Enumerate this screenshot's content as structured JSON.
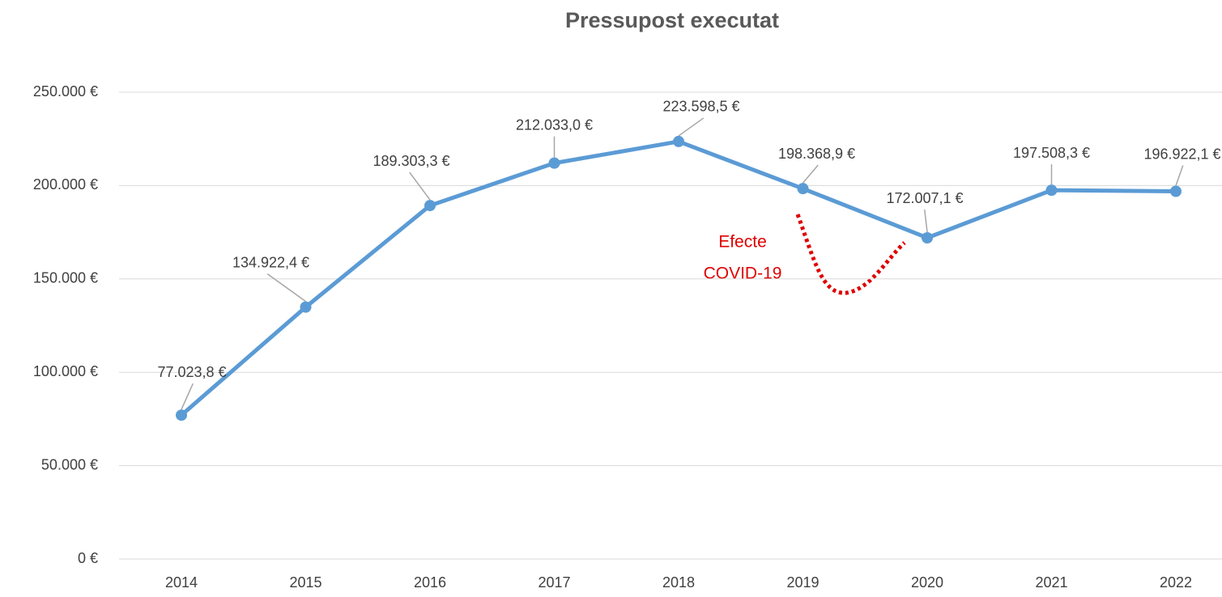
{
  "chart_data": {
    "type": "line",
    "title": "Pressupost executat",
    "categories": [
      "2014",
      "2015",
      "2016",
      "2017",
      "2018",
      "2019",
      "2020",
      "2021",
      "2022"
    ],
    "series": [
      {
        "name": "Pressupost executat",
        "color": "#5b9bd5",
        "values": [
          77023.8,
          134922.4,
          189303.3,
          212033.0,
          223598.5,
          198368.9,
          172007.1,
          197508.3,
          196922.1
        ],
        "value_labels": [
          "77.023,8 €",
          "134.922,4 €",
          "189.303,3 €",
          "212.033,0 €",
          "223.598,5 €",
          "198.368,9 €",
          "172.007,1 €",
          "197.508,3 €",
          "196.922,1 €"
        ]
      }
    ],
    "ylim": [
      0,
      250000
    ],
    "yticks": [
      {
        "value": 0,
        "label": "0 €"
      },
      {
        "value": 50000,
        "label": "50.000 €"
      },
      {
        "value": 100000,
        "label": "100.000 €"
      },
      {
        "value": 150000,
        "label": "150.000 €"
      },
      {
        "value": 200000,
        "label": "200.000 €"
      },
      {
        "value": 250000,
        "label": "250.000 €"
      }
    ],
    "grid": true,
    "annotation": [
      "Efecte",
      "COVID-19"
    ],
    "annotation_color": "#e00000"
  }
}
